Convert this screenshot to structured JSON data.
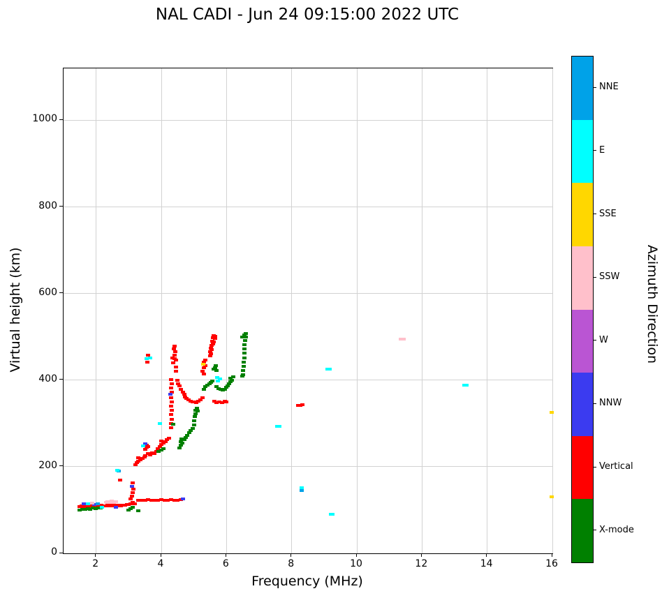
{
  "chart_data": {
    "type": "scatter",
    "title": "NAL CADI - Jun 24 09:15:00 2022 UTC",
    "xlabel": "Frequency (MHz)",
    "ylabel": "Virtual height (km)",
    "xlim": [
      1,
      16
    ],
    "ylim": [
      0,
      1120
    ],
    "x_ticks": [
      2,
      4,
      6,
      8,
      10,
      12,
      14,
      16
    ],
    "y_ticks": [
      0,
      200,
      400,
      600,
      800,
      1000
    ],
    "grid": true,
    "point_format": "[frequency_mhz, virtual_height_km, azimuth_key]",
    "colorbar": {
      "label": "Azimuth Direction",
      "categories_top_to_bottom": [
        {
          "label": "NNE",
          "color": "#00a2e8",
          "key": "B"
        },
        {
          "label": "E",
          "color": "#00ffff",
          "key": "E"
        },
        {
          "label": "SSE",
          "color": "#ffd700",
          "key": "G"
        },
        {
          "label": "SSW",
          "color": "#ffc0cb",
          "key": "S"
        },
        {
          "label": "W",
          "color": "#ba55d3",
          "key": "W"
        },
        {
          "label": "NNW",
          "color": "#3b3bf0",
          "key": "N"
        },
        {
          "label": "Vertical",
          "color": "#ff0000",
          "key": "V"
        },
        {
          "label": "X-mode",
          "color": "#008000",
          "key": "X"
        }
      ]
    },
    "points": [
      [
        1.5,
        108,
        "V"
      ],
      [
        1.56,
        110,
        "V"
      ],
      [
        1.62,
        107,
        "V"
      ],
      [
        1.68,
        110,
        "V"
      ],
      [
        1.74,
        109,
        "V"
      ],
      [
        1.8,
        111,
        "V"
      ],
      [
        1.86,
        108,
        "V"
      ],
      [
        1.92,
        111,
        "V"
      ],
      [
        1.98,
        109,
        "V"
      ],
      [
        2.04,
        111,
        "V"
      ],
      [
        2.1,
        109,
        "V"
      ],
      [
        2.16,
        111,
        "V"
      ],
      [
        2.22,
        110,
        "V"
      ],
      [
        2.28,
        110,
        "V"
      ],
      [
        2.34,
        111,
        "V"
      ],
      [
        2.4,
        110,
        "V"
      ],
      [
        2.46,
        112,
        "V"
      ],
      [
        2.52,
        110,
        "V"
      ],
      [
        2.58,
        111,
        "V"
      ],
      [
        2.64,
        110,
        "V"
      ],
      [
        2.7,
        112,
        "V"
      ],
      [
        2.76,
        110,
        "V"
      ],
      [
        2.82,
        112,
        "V"
      ],
      [
        2.88,
        111,
        "V"
      ],
      [
        2.94,
        113,
        "V"
      ],
      [
        3.0,
        113,
        "V"
      ],
      [
        3.06,
        115,
        "V"
      ],
      [
        3.12,
        117,
        "V"
      ],
      [
        3.18,
        114,
        "V"
      ],
      [
        1.5,
        100,
        "X"
      ],
      [
        1.58,
        102,
        "X"
      ],
      [
        1.66,
        101,
        "X"
      ],
      [
        1.74,
        103,
        "X"
      ],
      [
        1.82,
        102,
        "X"
      ],
      [
        1.9,
        104,
        "X"
      ],
      [
        1.98,
        103,
        "X"
      ],
      [
        2.06,
        105,
        "X"
      ],
      [
        2.14,
        104,
        "X"
      ],
      [
        3.0,
        100,
        "X"
      ],
      [
        3.06,
        103,
        "X"
      ],
      [
        3.12,
        106,
        "X"
      ],
      [
        3.3,
        98,
        "X"
      ],
      [
        1.62,
        115,
        "N"
      ],
      [
        1.95,
        113,
        "N"
      ],
      [
        2.06,
        114,
        "B"
      ],
      [
        2.6,
        107,
        "N"
      ],
      [
        1.76,
        114,
        "E"
      ],
      [
        2.18,
        107,
        "E"
      ],
      [
        1.88,
        116,
        "S"
      ],
      [
        2.3,
        117,
        "S"
      ],
      [
        2.36,
        120,
        "S"
      ],
      [
        2.42,
        118,
        "S"
      ],
      [
        2.48,
        121,
        "S"
      ],
      [
        2.54,
        117,
        "S"
      ],
      [
        2.6,
        119,
        "S"
      ],
      [
        2.7,
        190,
        "B"
      ],
      [
        2.66,
        192,
        "E"
      ],
      [
        2.74,
        170,
        "V"
      ],
      [
        3.06,
        125,
        "V"
      ],
      [
        3.1,
        132,
        "V"
      ],
      [
        3.12,
        140,
        "V"
      ],
      [
        3.14,
        148,
        "V"
      ],
      [
        3.1,
        155,
        "N"
      ],
      [
        3.12,
        162,
        "V"
      ],
      [
        3.3,
        122,
        "V"
      ],
      [
        3.4,
        123,
        "V"
      ],
      [
        3.5,
        122,
        "V"
      ],
      [
        3.6,
        124,
        "V"
      ],
      [
        3.7,
        122,
        "V"
      ],
      [
        3.8,
        123,
        "V"
      ],
      [
        3.9,
        122,
        "V"
      ],
      [
        4.0,
        124,
        "V"
      ],
      [
        4.1,
        123,
        "V"
      ],
      [
        4.2,
        122,
        "V"
      ],
      [
        4.3,
        124,
        "V"
      ],
      [
        4.4,
        123,
        "V"
      ],
      [
        4.5,
        122,
        "V"
      ],
      [
        4.6,
        124,
        "V"
      ],
      [
        4.66,
        126,
        "N"
      ],
      [
        3.2,
        205,
        "V"
      ],
      [
        3.26,
        209,
        "V"
      ],
      [
        3.3,
        213,
        "V"
      ],
      [
        3.3,
        221,
        "V"
      ],
      [
        3.36,
        216,
        "V"
      ],
      [
        3.42,
        219,
        "V"
      ],
      [
        3.48,
        222,
        "V"
      ],
      [
        3.5,
        226,
        "V"
      ],
      [
        3.5,
        240,
        "V"
      ],
      [
        3.54,
        245,
        "V"
      ],
      [
        3.56,
        250,
        "V"
      ],
      [
        3.6,
        247,
        "V"
      ],
      [
        3.6,
        231,
        "V"
      ],
      [
        3.66,
        228,
        "V"
      ],
      [
        3.72,
        232,
        "V"
      ],
      [
        3.78,
        230,
        "V"
      ],
      [
        3.84,
        236,
        "V"
      ],
      [
        3.9,
        241,
        "V"
      ],
      [
        3.96,
        246,
        "V"
      ],
      [
        4.0,
        251,
        "V"
      ],
      [
        4.0,
        260,
        "V"
      ],
      [
        4.06,
        255,
        "V"
      ],
      [
        4.12,
        258,
        "V"
      ],
      [
        4.18,
        262,
        "V"
      ],
      [
        4.24,
        266,
        "V"
      ],
      [
        3.5,
        253,
        "N"
      ],
      [
        3.44,
        248,
        "E"
      ],
      [
        3.92,
        236,
        "X"
      ],
      [
        4.0,
        239,
        "X"
      ],
      [
        4.06,
        242,
        "X"
      ],
      [
        3.58,
        442,
        "V"
      ],
      [
        3.6,
        457,
        "V"
      ],
      [
        3.55,
        450,
        "E"
      ],
      [
        3.66,
        452,
        "E"
      ],
      [
        3.95,
        300,
        "E"
      ],
      [
        4.3,
        290,
        "V"
      ],
      [
        4.3,
        300,
        "V"
      ],
      [
        4.32,
        310,
        "V"
      ],
      [
        4.3,
        320,
        "V"
      ],
      [
        4.32,
        330,
        "V"
      ],
      [
        4.3,
        340,
        "V"
      ],
      [
        4.32,
        350,
        "V"
      ],
      [
        4.3,
        360,
        "V"
      ],
      [
        4.32,
        372,
        "V"
      ],
      [
        4.3,
        382,
        "V"
      ],
      [
        4.32,
        392,
        "V"
      ],
      [
        4.3,
        402,
        "V"
      ],
      [
        4.28,
        368,
        "N"
      ],
      [
        4.36,
        298,
        "X"
      ],
      [
        4.34,
        452,
        "V"
      ],
      [
        4.36,
        440,
        "V"
      ],
      [
        4.4,
        450,
        "V"
      ],
      [
        4.4,
        458,
        "V"
      ],
      [
        4.42,
        466,
        "V"
      ],
      [
        4.38,
        472,
        "V"
      ],
      [
        4.4,
        479,
        "V"
      ],
      [
        4.44,
        446,
        "V"
      ],
      [
        4.46,
        430,
        "V"
      ],
      [
        4.46,
        420,
        "V"
      ],
      [
        4.5,
        400,
        "V"
      ],
      [
        4.52,
        392,
        "V"
      ],
      [
        4.56,
        386,
        "V"
      ],
      [
        4.6,
        379,
        "V"
      ],
      [
        4.66,
        373,
        "V"
      ],
      [
        4.7,
        368,
        "V"
      ],
      [
        4.72,
        361,
        "V"
      ],
      [
        4.78,
        358,
        "V"
      ],
      [
        4.84,
        354,
        "V"
      ],
      [
        4.9,
        351,
        "V"
      ],
      [
        4.96,
        349,
        "V"
      ],
      [
        5.02,
        350,
        "V"
      ],
      [
        5.08,
        348,
        "V"
      ],
      [
        5.14,
        351,
        "V"
      ],
      [
        5.2,
        355,
        "V"
      ],
      [
        5.26,
        359,
        "V"
      ],
      [
        5.26,
        420,
        "V"
      ],
      [
        5.3,
        428,
        "V"
      ],
      [
        5.3,
        441,
        "V"
      ],
      [
        5.34,
        446,
        "V"
      ],
      [
        5.36,
        433,
        "V"
      ],
      [
        5.3,
        414,
        "V"
      ],
      [
        5.28,
        437,
        "G"
      ],
      [
        5.5,
        456,
        "V"
      ],
      [
        5.5,
        466,
        "V"
      ],
      [
        5.52,
        473,
        "V"
      ],
      [
        5.54,
        481,
        "V"
      ],
      [
        5.56,
        490,
        "V"
      ],
      [
        5.58,
        498,
        "V"
      ],
      [
        5.6,
        503,
        "V"
      ],
      [
        5.64,
        501,
        "V"
      ],
      [
        5.66,
        497,
        "V"
      ],
      [
        5.6,
        489,
        "V"
      ],
      [
        5.58,
        483,
        "V"
      ],
      [
        5.54,
        470,
        "V"
      ],
      [
        5.52,
        461,
        "V"
      ],
      [
        5.62,
        351,
        "V"
      ],
      [
        5.7,
        348,
        "V"
      ],
      [
        5.78,
        350,
        "V"
      ],
      [
        5.86,
        348,
        "V"
      ],
      [
        5.94,
        351,
        "V"
      ],
      [
        6.0,
        350,
        "V"
      ],
      [
        4.56,
        243,
        "X"
      ],
      [
        4.6,
        250,
        "X"
      ],
      [
        4.6,
        258,
        "X"
      ],
      [
        4.64,
        255,
        "X"
      ],
      [
        4.62,
        265,
        "X"
      ],
      [
        4.7,
        262,
        "X"
      ],
      [
        4.76,
        268,
        "X"
      ],
      [
        4.8,
        272,
        "X"
      ],
      [
        4.86,
        278,
        "X"
      ],
      [
        4.9,
        284,
        "X"
      ],
      [
        4.96,
        289,
        "X"
      ],
      [
        5.0,
        296,
        "X"
      ],
      [
        5.0,
        306,
        "X"
      ],
      [
        5.02,
        316,
        "X"
      ],
      [
        5.04,
        323,
        "X"
      ],
      [
        5.06,
        331,
        "X"
      ],
      [
        5.1,
        336,
        "X"
      ],
      [
        5.12,
        328,
        "X"
      ],
      [
        5.3,
        378,
        "X"
      ],
      [
        5.36,
        385,
        "X"
      ],
      [
        5.42,
        388,
        "X"
      ],
      [
        5.48,
        392,
        "X"
      ],
      [
        5.52,
        395,
        "X"
      ],
      [
        5.56,
        398,
        "X"
      ],
      [
        5.6,
        425,
        "X"
      ],
      [
        5.66,
        429,
        "X"
      ],
      [
        5.7,
        422,
        "X"
      ],
      [
        5.68,
        433,
        "X"
      ],
      [
        5.7,
        385,
        "X"
      ],
      [
        5.76,
        380,
        "X"
      ],
      [
        5.82,
        378,
        "X"
      ],
      [
        5.88,
        377,
        "X"
      ],
      [
        5.94,
        379,
        "X"
      ],
      [
        6.0,
        383,
        "X"
      ],
      [
        6.04,
        387,
        "X"
      ],
      [
        6.08,
        391,
        "X"
      ],
      [
        6.12,
        396,
        "X"
      ],
      [
        6.12,
        405,
        "X"
      ],
      [
        6.16,
        400,
        "X"
      ],
      [
        6.2,
        408,
        "X"
      ],
      [
        6.48,
        410,
        "X"
      ],
      [
        6.5,
        412,
        "X"
      ],
      [
        6.5,
        422,
        "X"
      ],
      [
        6.52,
        432,
        "X"
      ],
      [
        6.52,
        442,
        "X"
      ],
      [
        6.54,
        452,
        "X"
      ],
      [
        6.54,
        462,
        "X"
      ],
      [
        6.56,
        472,
        "X"
      ],
      [
        6.56,
        482,
        "X"
      ],
      [
        6.58,
        491,
        "X"
      ],
      [
        6.6,
        500,
        "X"
      ],
      [
        6.6,
        507,
        "X"
      ],
      [
        6.54,
        505,
        "X"
      ],
      [
        6.48,
        500,
        "X"
      ],
      [
        5.74,
        398,
        "E"
      ],
      [
        5.8,
        403,
        "E"
      ],
      [
        5.72,
        406,
        "E"
      ],
      [
        7.56,
        293,
        "E"
      ],
      [
        7.62,
        293,
        "E"
      ],
      [
        8.2,
        342,
        "V"
      ],
      [
        8.26,
        342,
        "V"
      ],
      [
        8.32,
        343,
        "V"
      ],
      [
        8.3,
        151,
        "E"
      ],
      [
        8.3,
        145,
        "B"
      ],
      [
        9.1,
        425,
        "E"
      ],
      [
        9.16,
        425,
        "E"
      ],
      [
        9.2,
        90,
        "E"
      ],
      [
        9.26,
        90,
        "E"
      ],
      [
        11.36,
        495,
        "S"
      ],
      [
        11.44,
        495,
        "S"
      ],
      [
        13.3,
        388,
        "E"
      ],
      [
        13.36,
        388,
        "E"
      ],
      [
        15.97,
        325,
        "G"
      ],
      [
        15.97,
        130,
        "G"
      ]
    ]
  }
}
